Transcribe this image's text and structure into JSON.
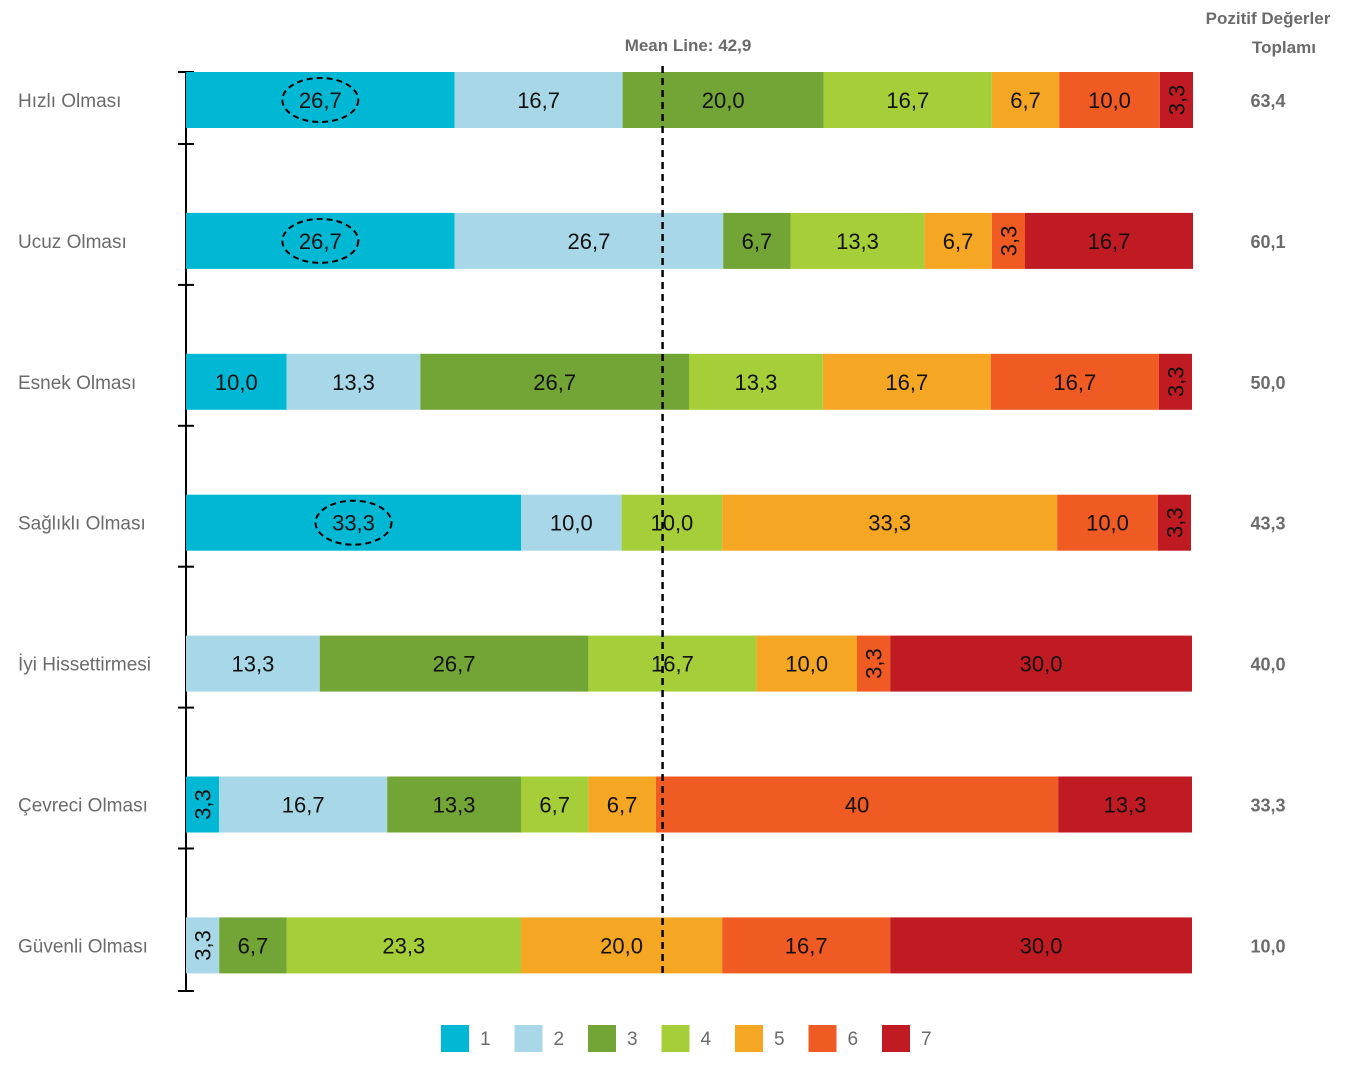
{
  "chart_data": {
    "type": "bar",
    "orientation": "horizontal",
    "stacked": true,
    "percent_stacked": true,
    "categories": [
      "Hızlı Olması",
      "Ucuz Olması",
      "Esnek Olması",
      "Sağlıklı Olması",
      "İyi Hissettirmesi",
      "Çevreci Olması",
      "Güvenli Olması"
    ],
    "series": [
      {
        "name": "1",
        "color": "#00B8D4",
        "values": [
          26.7,
          26.7,
          10.0,
          33.3,
          0,
          3.3,
          0
        ]
      },
      {
        "name": "2",
        "color": "#A8D8E8",
        "values": [
          16.7,
          26.7,
          13.3,
          10.0,
          13.3,
          16.7,
          3.3
        ]
      },
      {
        "name": "3",
        "color": "#72A535",
        "values": [
          20.0,
          6.7,
          26.7,
          0,
          26.7,
          13.3,
          6.7
        ]
      },
      {
        "name": "4",
        "color": "#A6CE39",
        "values": [
          16.7,
          13.3,
          13.3,
          10.0,
          16.7,
          6.7,
          23.3
        ]
      },
      {
        "name": "5",
        "color": "#F5A623",
        "values": [
          6.7,
          6.7,
          16.7,
          33.3,
          10.0,
          6.7,
          20.0
        ]
      },
      {
        "name": "6",
        "color": "#F05A23",
        "values": [
          10.0,
          3.3,
          16.7,
          10.0,
          3.3,
          40,
          16.7
        ]
      },
      {
        "name": "7",
        "color": "#C01A23",
        "values": [
          3.3,
          16.7,
          3.3,
          3.3,
          30.0,
          13.3,
          30.0
        ]
      }
    ],
    "segment_labels": [
      [
        "26,7",
        "16,7",
        "20,0",
        "16,7",
        "6,7",
        "10,0",
        "3,3"
      ],
      [
        "26,7",
        "26,7",
        "6,7",
        "13,3",
        "6,7",
        "3,3",
        "16,7"
      ],
      [
        "10,0",
        "13,3",
        "26,7",
        "13,3",
        "16,7",
        "16,7",
        "3,3"
      ],
      [
        "33,3",
        "10,0",
        "",
        "10,0",
        "33,3",
        "10,0",
        "3,3"
      ],
      [
        "",
        "13,3",
        "26,7",
        "16,7",
        "10,0",
        "3,3",
        "30,0"
      ],
      [
        "3,3",
        "16,7",
        "13,3",
        "6,7",
        "6,7",
        "40",
        "13,3"
      ],
      [
        "",
        "3,3",
        "6,7",
        "23,3",
        "20,0",
        "16,7",
        "30,0"
      ]
    ],
    "highlighted_segments": [
      [
        0,
        0
      ],
      [
        1,
        0
      ],
      [
        3,
        0
      ]
    ],
    "mean_line": {
      "label": "Mean Line: 42,9",
      "value": 42.9
    },
    "right_column": {
      "title_line1": "Pozitif Değerler",
      "title_line2": "Toplamı",
      "values": [
        "63,4",
        "60,1",
        "50,0",
        "43,3",
        "40,0",
        "33,3",
        "10,0"
      ]
    },
    "xlim": [
      0,
      100
    ],
    "grid": false,
    "legend_position": "bottom"
  }
}
